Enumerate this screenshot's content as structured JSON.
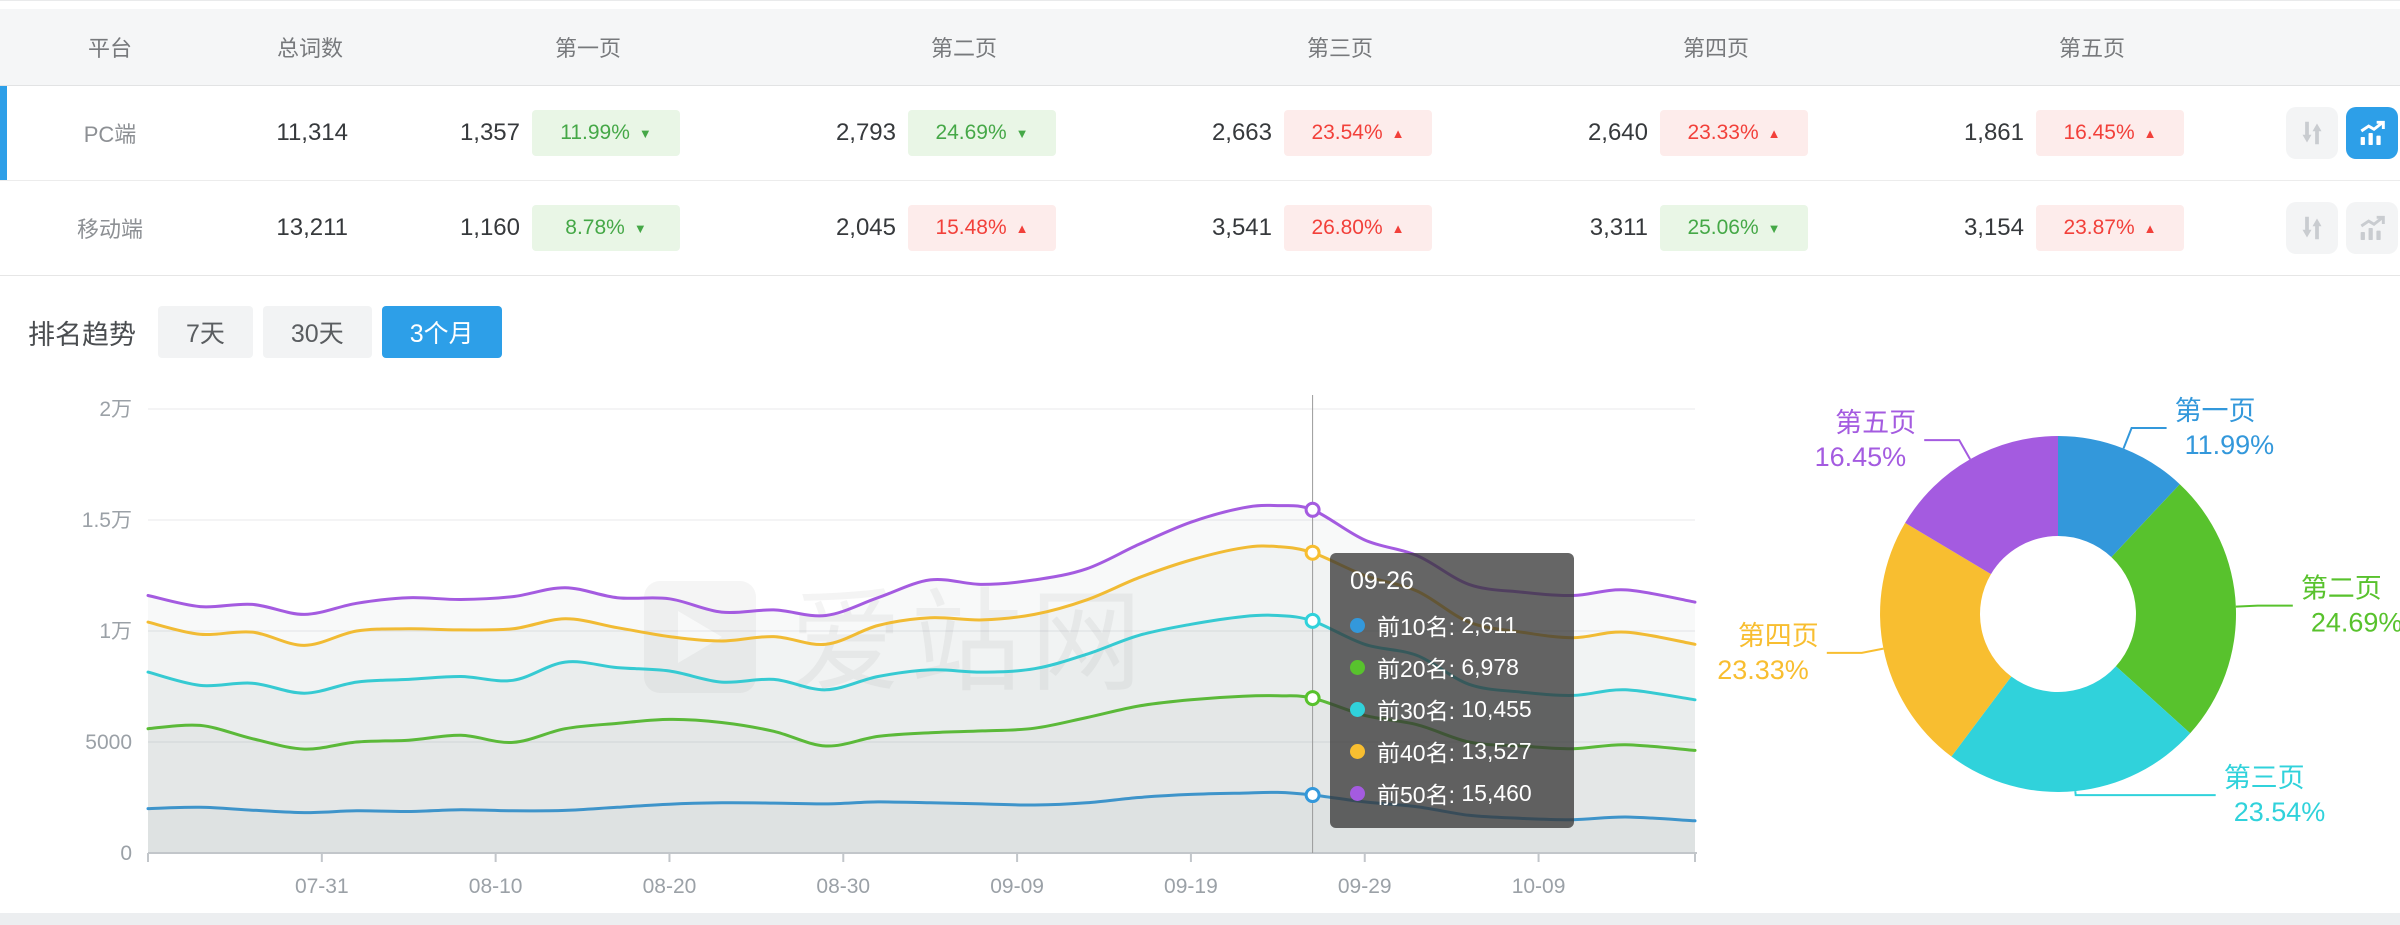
{
  "colors": {
    "accent_blue": "#2d9fe8",
    "good_green": "#45a847",
    "bad_red": "#f2403a",
    "series": [
      "#3398db",
      "#58c22d",
      "#30d2db",
      "#f8be30",
      "#a45be0"
    ]
  },
  "table": {
    "headers": {
      "platform": "平台",
      "total": "总词数",
      "pages": [
        "第一页",
        "第二页",
        "第三页",
        "第四页",
        "第五页"
      ]
    },
    "rows": [
      {
        "platform": "PC端",
        "selected": true,
        "chart_active": true,
        "total": "11,314",
        "pages": [
          {
            "value": "1,357",
            "pct": "11.99%",
            "trend": "down",
            "tone": "good"
          },
          {
            "value": "2,793",
            "pct": "24.69%",
            "trend": "down",
            "tone": "good"
          },
          {
            "value": "2,663",
            "pct": "23.54%",
            "trend": "up",
            "tone": "bad"
          },
          {
            "value": "2,640",
            "pct": "23.33%",
            "trend": "up",
            "tone": "bad"
          },
          {
            "value": "1,861",
            "pct": "16.45%",
            "trend": "up",
            "tone": "bad"
          }
        ]
      },
      {
        "platform": "移动端",
        "selected": false,
        "chart_active": false,
        "total": "13,211",
        "pages": [
          {
            "value": "1,160",
            "pct": "8.78%",
            "trend": "down",
            "tone": "good"
          },
          {
            "value": "2,045",
            "pct": "15.48%",
            "trend": "up",
            "tone": "bad"
          },
          {
            "value": "3,541",
            "pct": "26.80%",
            "trend": "up",
            "tone": "bad"
          },
          {
            "value": "3,311",
            "pct": "25.06%",
            "trend": "down",
            "tone": "good"
          },
          {
            "value": "3,154",
            "pct": "23.87%",
            "trend": "up",
            "tone": "bad"
          }
        ]
      }
    ]
  },
  "trend_section": {
    "title": "排名趋势",
    "ranges": [
      {
        "label": "7天",
        "active": false
      },
      {
        "label": "30天",
        "active": false
      },
      {
        "label": "3个月",
        "active": true
      }
    ]
  },
  "watermark": "爱站网",
  "tooltip": {
    "title": "09-26",
    "rows": [
      {
        "name": "前10名",
        "value": "2,611"
      },
      {
        "name": "前20名",
        "value": "6,978"
      },
      {
        "name": "前30名",
        "value": "10,455"
      },
      {
        "name": "前40名",
        "value": "13,527"
      },
      {
        "name": "前50名",
        "value": "15,460"
      }
    ]
  },
  "chart_data": [
    {
      "type": "line",
      "title": "排名趋势（3个月）",
      "grid": true,
      "legend_position": "none",
      "ylim": [
        0,
        20000
      ],
      "y_tick_labels": [
        "0",
        "5000",
        "1万",
        "1.5万",
        "2万"
      ],
      "x_domain_days": [
        0,
        89
      ],
      "x_start_date": "07-21",
      "x_end_date": "10-18",
      "x_tick_days": [
        10,
        20,
        30,
        40,
        50,
        60,
        70,
        80
      ],
      "x_tick_labels": [
        "07-31",
        "08-10",
        "08-20",
        "08-30",
        "09-09",
        "09-19",
        "09-29",
        "10-09"
      ],
      "crosshair": {
        "date": "09-26",
        "day": 67
      },
      "series": [
        {
          "name": "前10名",
          "color": "#3398db",
          "points": [
            [
              0,
              2000
            ],
            [
              3,
              2060
            ],
            [
              6,
              1930
            ],
            [
              9,
              1820
            ],
            [
              12,
              1900
            ],
            [
              15,
              1870
            ],
            [
              18,
              1950
            ],
            [
              21,
              1900
            ],
            [
              24,
              1920
            ],
            [
              27,
              2060
            ],
            [
              30,
              2200
            ],
            [
              33,
              2260
            ],
            [
              36,
              2250
            ],
            [
              39,
              2210
            ],
            [
              42,
              2300
            ],
            [
              45,
              2260
            ],
            [
              48,
              2210
            ],
            [
              51,
              2160
            ],
            [
              54,
              2260
            ],
            [
              57,
              2500
            ],
            [
              60,
              2640
            ],
            [
              63,
              2700
            ],
            [
              65,
              2730
            ],
            [
              67,
              2611
            ],
            [
              70,
              2300
            ],
            [
              73,
              2080
            ],
            [
              76,
              1700
            ],
            [
              79,
              1560
            ],
            [
              82,
              1500
            ],
            [
              85,
              1620
            ],
            [
              89,
              1450
            ]
          ]
        },
        {
          "name": "前20名",
          "color": "#58c22d",
          "points": [
            [
              0,
              5600
            ],
            [
              3,
              5750
            ],
            [
              6,
              5150
            ],
            [
              9,
              4680
            ],
            [
              12,
              5000
            ],
            [
              15,
              5080
            ],
            [
              18,
              5300
            ],
            [
              21,
              4980
            ],
            [
              24,
              5600
            ],
            [
              27,
              5840
            ],
            [
              30,
              6020
            ],
            [
              33,
              5880
            ],
            [
              36,
              5480
            ],
            [
              39,
              4820
            ],
            [
              42,
              5250
            ],
            [
              45,
              5420
            ],
            [
              48,
              5500
            ],
            [
              51,
              5620
            ],
            [
              54,
              6100
            ],
            [
              57,
              6620
            ],
            [
              60,
              6900
            ],
            [
              63,
              7060
            ],
            [
              65,
              7080
            ],
            [
              67,
              6978
            ],
            [
              70,
              6200
            ],
            [
              73,
              5780
            ],
            [
              76,
              5000
            ],
            [
              79,
              4820
            ],
            [
              82,
              4700
            ],
            [
              85,
              4880
            ],
            [
              89,
              4620
            ]
          ]
        },
        {
          "name": "前30名",
          "color": "#30d2db",
          "points": [
            [
              0,
              8150
            ],
            [
              3,
              7550
            ],
            [
              6,
              7650
            ],
            [
              9,
              7200
            ],
            [
              12,
              7700
            ],
            [
              15,
              7820
            ],
            [
              18,
              7950
            ],
            [
              21,
              7780
            ],
            [
              24,
              8600
            ],
            [
              27,
              8350
            ],
            [
              30,
              8200
            ],
            [
              33,
              7700
            ],
            [
              36,
              7820
            ],
            [
              39,
              7350
            ],
            [
              42,
              7950
            ],
            [
              45,
              8250
            ],
            [
              48,
              8150
            ],
            [
              51,
              8300
            ],
            [
              54,
              8950
            ],
            [
              57,
              9800
            ],
            [
              60,
              10300
            ],
            [
              63,
              10650
            ],
            [
              65,
              10700
            ],
            [
              67,
              10455
            ],
            [
              70,
              9400
            ],
            [
              73,
              8900
            ],
            [
              76,
              7600
            ],
            [
              79,
              7250
            ],
            [
              82,
              7100
            ],
            [
              85,
              7350
            ],
            [
              89,
              6900
            ]
          ]
        },
        {
          "name": "前40名",
          "color": "#f8be30",
          "points": [
            [
              0,
              10400
            ],
            [
              3,
              9850
            ],
            [
              6,
              9950
            ],
            [
              9,
              9350
            ],
            [
              12,
              10000
            ],
            [
              15,
              10100
            ],
            [
              18,
              10050
            ],
            [
              21,
              10100
            ],
            [
              24,
              10550
            ],
            [
              27,
              10150
            ],
            [
              30,
              9750
            ],
            [
              33,
              9550
            ],
            [
              36,
              9750
            ],
            [
              39,
              9400
            ],
            [
              42,
              10250
            ],
            [
              45,
              10600
            ],
            [
              48,
              10500
            ],
            [
              51,
              10750
            ],
            [
              54,
              11400
            ],
            [
              57,
              12400
            ],
            [
              60,
              13200
            ],
            [
              63,
              13750
            ],
            [
              65,
              13800
            ],
            [
              67,
              13527
            ],
            [
              70,
              12500
            ],
            [
              73,
              11800
            ],
            [
              76,
              10400
            ],
            [
              79,
              9950
            ],
            [
              82,
              9700
            ],
            [
              85,
              9950
            ],
            [
              89,
              9400
            ]
          ]
        },
        {
          "name": "前50名",
          "color": "#a45be0",
          "points": [
            [
              0,
              11600
            ],
            [
              3,
              11100
            ],
            [
              6,
              11200
            ],
            [
              9,
              10750
            ],
            [
              12,
              11250
            ],
            [
              15,
              11500
            ],
            [
              18,
              11420
            ],
            [
              21,
              11550
            ],
            [
              24,
              11950
            ],
            [
              27,
              11500
            ],
            [
              30,
              11450
            ],
            [
              33,
              10850
            ],
            [
              36,
              10950
            ],
            [
              39,
              10700
            ],
            [
              42,
              11500
            ],
            [
              45,
              12300
            ],
            [
              48,
              12100
            ],
            [
              51,
              12300
            ],
            [
              54,
              12800
            ],
            [
              57,
              13900
            ],
            [
              60,
              14900
            ],
            [
              63,
              15550
            ],
            [
              65,
              15650
            ],
            [
              67,
              15460
            ],
            [
              70,
              14100
            ],
            [
              73,
              13400
            ],
            [
              76,
              12100
            ],
            [
              79,
              11750
            ],
            [
              82,
              11600
            ],
            [
              85,
              11850
            ],
            [
              89,
              11300
            ]
          ]
        }
      ]
    },
    {
      "type": "pie",
      "donut": true,
      "labels": [
        "第一页",
        "第二页",
        "第三页",
        "第四页",
        "第五页"
      ],
      "values": [
        11.99,
        24.69,
        23.54,
        23.33,
        16.45
      ],
      "unit": "%",
      "colors": [
        "#3398db",
        "#58c22d",
        "#30d2db",
        "#f8be30",
        "#a45be0"
      ],
      "start_angle_deg": 0,
      "clockwise": true
    }
  ]
}
